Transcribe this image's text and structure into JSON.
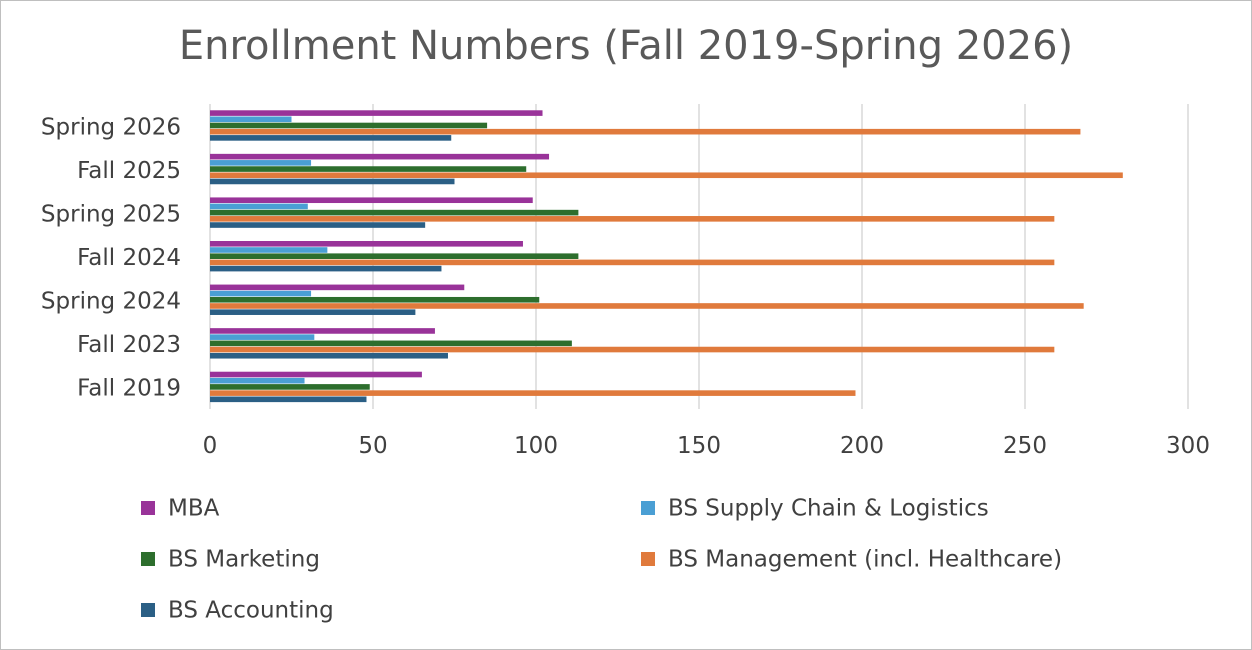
{
  "chart_data": {
    "type": "bar",
    "orientation": "horizontal",
    "title": "Enrollment Numbers (Fall 2019-Spring 2026)",
    "xlabel": "",
    "ylabel": "",
    "xlim": [
      0,
      300
    ],
    "x_ticks": [
      0,
      50,
      100,
      150,
      200,
      250,
      300
    ],
    "grid": true,
    "legend_position": "bottom",
    "categories": [
      "Spring 2026",
      "Fall 2025",
      "Spring 2025",
      "Fall 2024",
      "Spring 2024",
      "Fall 2023",
      "Fall 2019"
    ],
    "series": [
      {
        "name": "MBA",
        "color": "#993399",
        "values": [
          102,
          104,
          99,
          96,
          78,
          69,
          65
        ]
      },
      {
        "name": "BS Supply Chain & Logistics",
        "color": "#4a9fd4",
        "values": [
          25,
          31,
          30,
          36,
          31,
          32,
          29
        ]
      },
      {
        "name": "BS Marketing",
        "color": "#2d6e2d",
        "values": [
          85,
          97,
          113,
          113,
          101,
          111,
          49
        ]
      },
      {
        "name": "BS Management (incl. Healthcare)",
        "color": "#e07a3c",
        "values": [
          267,
          280,
          259,
          259,
          268,
          259,
          198
        ]
      },
      {
        "name": "BS Accounting",
        "color": "#2b5f85",
        "values": [
          74,
          75,
          66,
          71,
          63,
          73,
          48
        ]
      }
    ]
  }
}
